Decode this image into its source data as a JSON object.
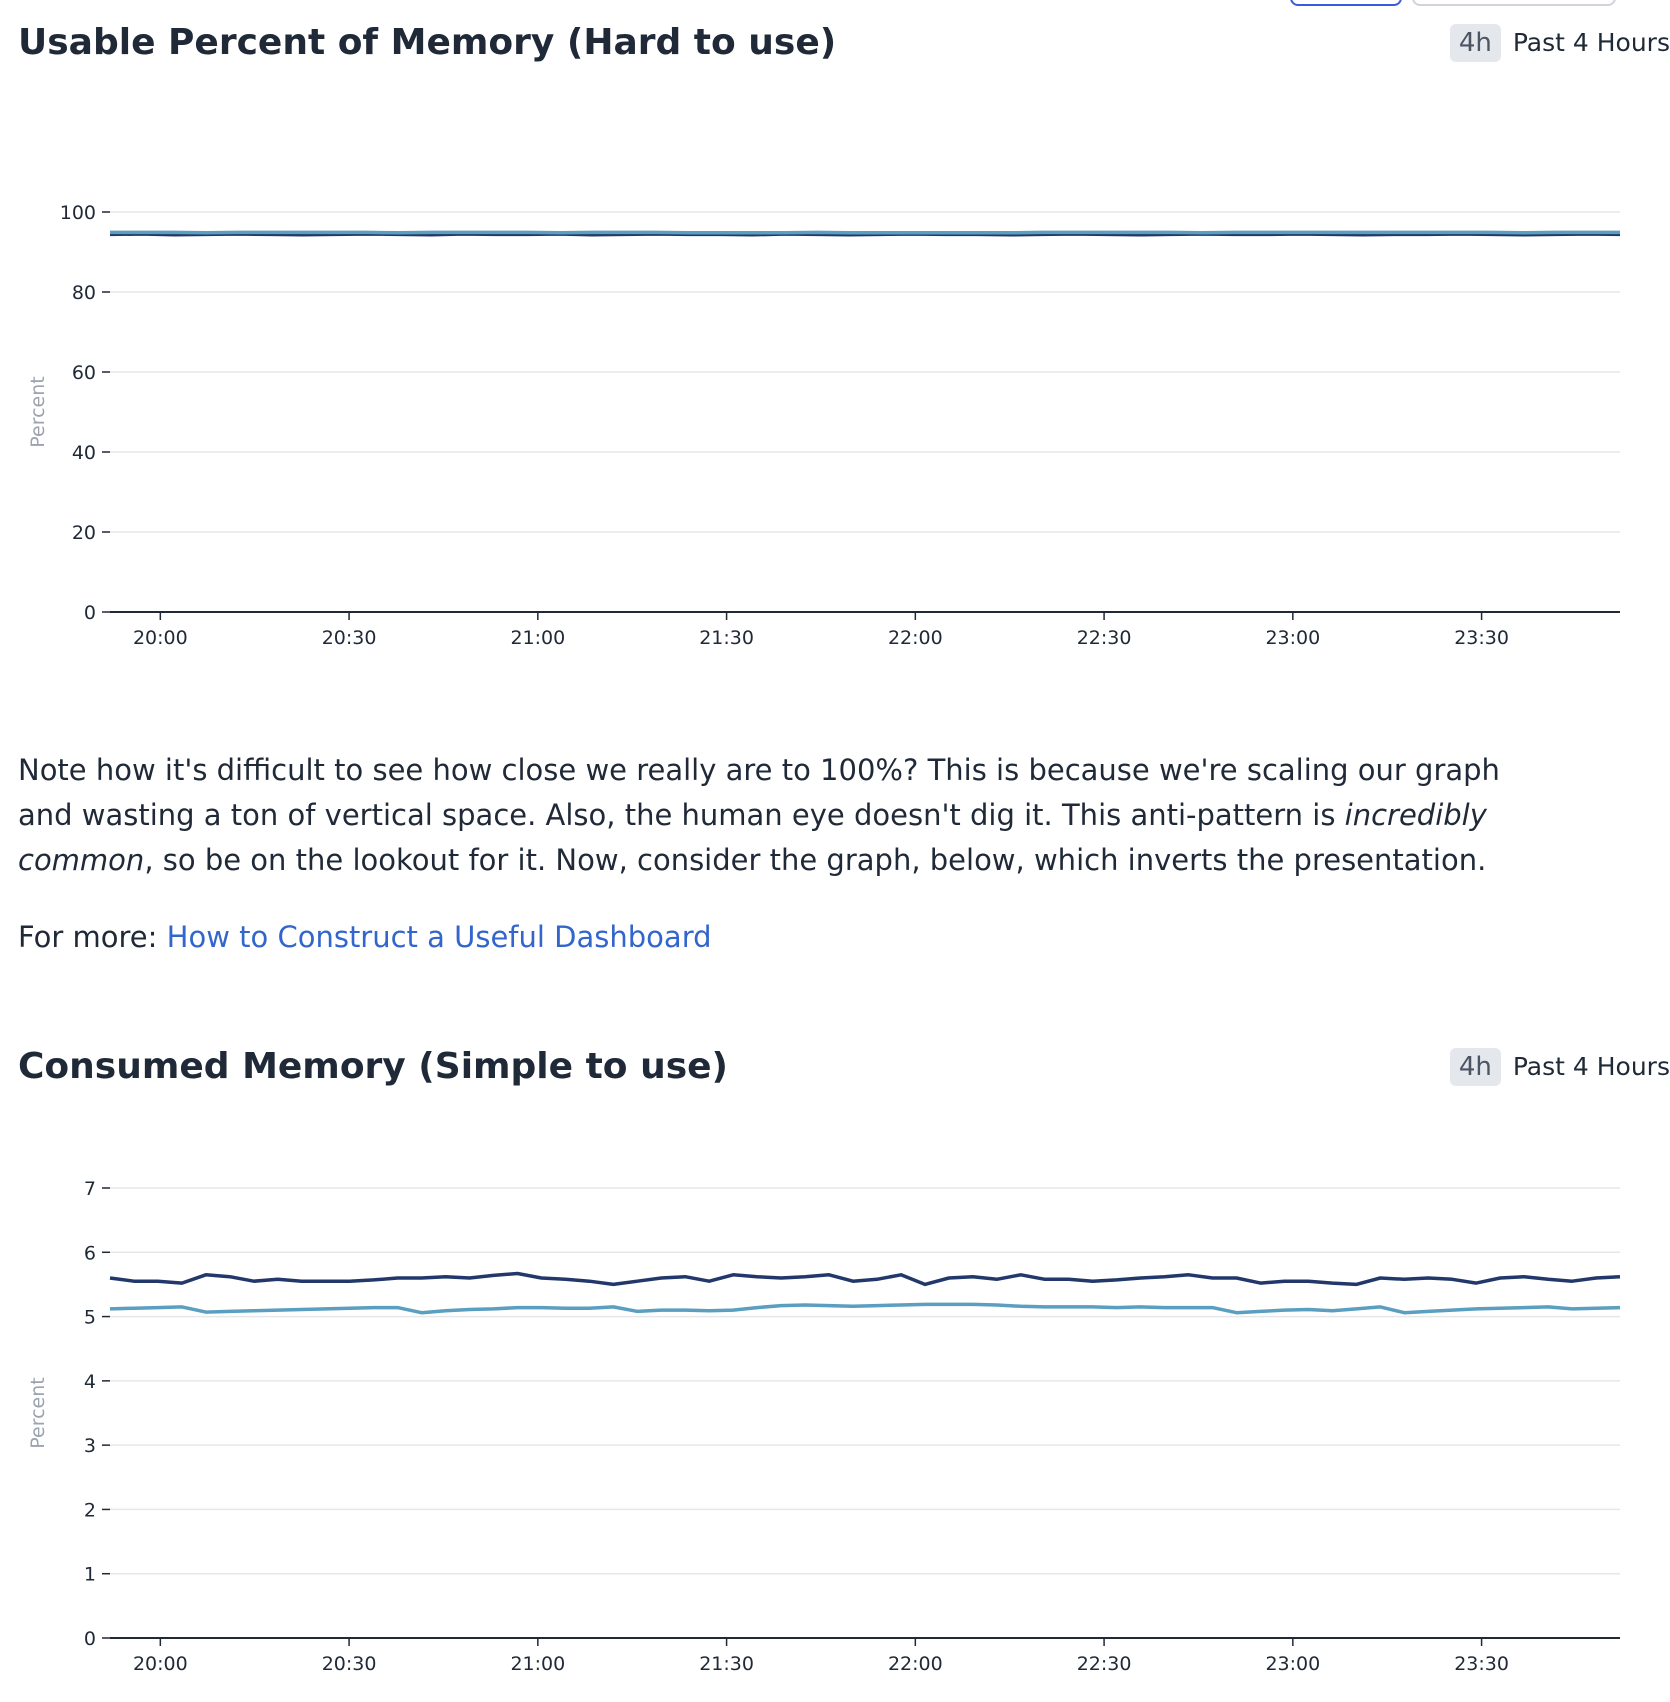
{
  "widgets": [
    {
      "title": "Usable Percent of Memory (Hard to use)",
      "time_chip": "4h",
      "time_label": "Past 4 Hours"
    },
    {
      "title": "Consumed Memory (Simple to use)",
      "time_chip": "4h",
      "time_label": "Past 4 Hours"
    }
  ],
  "note": {
    "part1": "Note how it's difficult to see how close we really are to 100%? This is because we're scaling our graph and wasting a ton of vertical space. Also, the human eye doesn't dig it. This anti-pattern is ",
    "emphasis": "incredibly common",
    "part2": ", so be on the lookout for it. Now, consider the graph, below, which inverts the presentation."
  },
  "more": {
    "prefix": "For more: ",
    "link_text": "How to Construct a Useful Dashboard"
  },
  "colors": {
    "series_dark": "#22386b",
    "series_light": "#5a9fc0",
    "axis": "#1f2937",
    "grid": "#e5e7eb",
    "tick_text": "#1f2937",
    "ylabel_text": "#9ca3af"
  },
  "chart_data": [
    {
      "type": "line",
      "title": "Usable Percent of Memory (Hard to use)",
      "xlabel": "",
      "ylabel": "Percent",
      "x_start": "19:52",
      "x_end": "23:52",
      "x_ticks": [
        "20:00",
        "20:30",
        "21:00",
        "21:30",
        "22:00",
        "22:30",
        "23:00",
        "23:30"
      ],
      "ylim": [
        0,
        100
      ],
      "y_ticks": [
        0,
        20,
        40,
        60,
        80,
        100
      ],
      "grid": true,
      "series": [
        {
          "values": [
            94.4,
            94.5,
            94.3,
            94.4,
            94.5,
            94.4,
            94.3,
            94.4,
            94.5,
            94.4,
            94.3,
            94.5,
            94.4,
            94.4,
            94.5,
            94.3,
            94.4,
            94.5,
            94.4,
            94.4,
            94.3,
            94.5,
            94.4,
            94.3,
            94.4,
            94.5,
            94.4,
            94.4,
            94.3,
            94.4,
            94.5,
            94.4,
            94.3,
            94.4,
            94.5,
            94.4,
            94.4,
            94.5,
            94.4,
            94.3,
            94.4,
            94.4,
            94.5,
            94.4,
            94.3,
            94.4,
            94.5,
            94.4
          ]
        },
        {
          "values": [
            94.9,
            94.9,
            94.9,
            94.8,
            94.9,
            94.9,
            94.9,
            94.9,
            94.9,
            94.8,
            94.9,
            94.9,
            94.9,
            94.9,
            94.8,
            94.9,
            94.9,
            94.9,
            94.8,
            94.8,
            94.8,
            94.8,
            94.9,
            94.8,
            94.8,
            94.8,
            94.8,
            94.8,
            94.8,
            94.9,
            94.9,
            94.9,
            94.9,
            94.9,
            94.8,
            94.9,
            94.9,
            94.9,
            94.9,
            94.9,
            94.9,
            94.9,
            94.9,
            94.9,
            94.8,
            94.9,
            94.9,
            94.9
          ]
        }
      ]
    },
    {
      "type": "line",
      "title": "Consumed Memory (Simple to use)",
      "xlabel": "",
      "ylabel": "Percent",
      "x_start": "19:52",
      "x_end": "23:52",
      "x_ticks": [
        "20:00",
        "20:30",
        "21:00",
        "21:30",
        "22:00",
        "22:30",
        "23:00",
        "23:30"
      ],
      "ylim": [
        0,
        7
      ],
      "y_ticks": [
        0,
        1,
        2,
        3,
        4,
        5,
        6,
        7
      ],
      "grid": true,
      "series": [
        {
          "values": [
            5.6,
            5.55,
            5.55,
            5.52,
            5.65,
            5.62,
            5.55,
            5.58,
            5.55,
            5.55,
            5.55,
            5.57,
            5.6,
            5.6,
            5.62,
            5.6,
            5.64,
            5.67,
            5.6,
            5.58,
            5.55,
            5.5,
            5.55,
            5.6,
            5.62,
            5.55,
            5.65,
            5.62,
            5.6,
            5.62,
            5.65,
            5.55,
            5.58,
            5.65,
            5.5,
            5.6,
            5.62,
            5.58,
            5.65,
            5.58,
            5.58,
            5.55,
            5.57,
            5.6,
            5.62,
            5.65,
            5.6,
            5.6,
            5.52,
            5.55,
            5.55,
            5.52,
            5.5,
            5.6,
            5.58,
            5.6,
            5.58,
            5.52,
            5.6,
            5.62,
            5.58,
            5.55,
            5.6,
            5.62
          ]
        },
        {
          "values": [
            5.12,
            5.13,
            5.14,
            5.15,
            5.07,
            5.08,
            5.09,
            5.1,
            5.11,
            5.12,
            5.13,
            5.14,
            5.14,
            5.06,
            5.09,
            5.11,
            5.12,
            5.14,
            5.14,
            5.13,
            5.13,
            5.15,
            5.08,
            5.1,
            5.1,
            5.09,
            5.1,
            5.14,
            5.17,
            5.18,
            5.17,
            5.16,
            5.17,
            5.18,
            5.19,
            5.19,
            5.19,
            5.18,
            5.16,
            5.15,
            5.15,
            5.15,
            5.14,
            5.15,
            5.14,
            5.14,
            5.14,
            5.06,
            5.08,
            5.1,
            5.11,
            5.09,
            5.12,
            5.15,
            5.06,
            5.08,
            5.1,
            5.12,
            5.13,
            5.14,
            5.15,
            5.12,
            5.13,
            5.14
          ]
        }
      ]
    }
  ]
}
